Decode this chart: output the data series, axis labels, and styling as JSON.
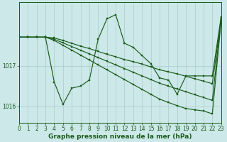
{
  "bg_color": "#cce8e8",
  "line_color": "#1a5c1a",
  "grid_color": "#aacccc",
  "xlabel": "Graphe pression niveau de la mer (hPa)",
  "xlabel_fontsize": 6.5,
  "ylabel_ticks": [
    1016,
    1017
  ],
  "xlim": [
    0,
    23
  ],
  "ylim": [
    1015.6,
    1018.55
  ],
  "series": [
    {
      "x": [
        0,
        1,
        2,
        3,
        4,
        5,
        6,
        7,
        8,
        9,
        10,
        11,
        12,
        13,
        14,
        15,
        16,
        17,
        18,
        19,
        20,
        21,
        22,
        23
      ],
      "y": [
        1017.7,
        1017.7,
        1017.7,
        1017.7,
        1016.6,
        1016.05,
        1016.45,
        1016.5,
        1016.65,
        1017.65,
        1018.15,
        1018.25,
        1017.55,
        1017.45,
        1017.25,
        1017.05,
        1016.7,
        1016.65,
        1016.3,
        1016.75,
        1016.75,
        1016.75,
        1016.75,
        1018.2
      ]
    },
    {
      "x": [
        0,
        1,
        2,
        3,
        4,
        5,
        6,
        7,
        8,
        9,
        10,
        11,
        12,
        13,
        14,
        15,
        16,
        17,
        18,
        19,
        20,
        21,
        22,
        23
      ],
      "y": [
        1017.7,
        1017.7,
        1017.7,
        1017.7,
        1017.68,
        1017.62,
        1017.55,
        1017.48,
        1017.42,
        1017.35,
        1017.28,
        1017.22,
        1017.15,
        1017.1,
        1017.04,
        1016.97,
        1016.9,
        1016.85,
        1016.8,
        1016.74,
        1016.68,
        1016.62,
        1016.56,
        1018.15
      ]
    },
    {
      "x": [
        0,
        1,
        2,
        3,
        4,
        5,
        6,
        7,
        8,
        9,
        10,
        11,
        12,
        13,
        14,
        15,
        16,
        17,
        18,
        19,
        20,
        21,
        22,
        23
      ],
      "y": [
        1017.7,
        1017.7,
        1017.7,
        1017.7,
        1017.65,
        1017.56,
        1017.47,
        1017.38,
        1017.29,
        1017.2,
        1017.11,
        1017.02,
        1016.93,
        1016.84,
        1016.75,
        1016.66,
        1016.57,
        1016.5,
        1016.43,
        1016.36,
        1016.29,
        1016.22,
        1016.15,
        1018.15
      ]
    },
    {
      "x": [
        0,
        1,
        2,
        3,
        4,
        5,
        6,
        7,
        8,
        9,
        10,
        11,
        12,
        13,
        14,
        15,
        16,
        17,
        18,
        19,
        20,
        21,
        22,
        23
      ],
      "y": [
        1017.7,
        1017.7,
        1017.7,
        1017.7,
        1017.62,
        1017.5,
        1017.38,
        1017.26,
        1017.14,
        1017.02,
        1016.9,
        1016.78,
        1016.66,
        1016.54,
        1016.42,
        1016.3,
        1016.18,
        1016.1,
        1016.02,
        1015.95,
        1015.92,
        1015.89,
        1015.82,
        1018.1
      ]
    }
  ],
  "tick_fontsize": 5.5,
  "marker_size": 2.0,
  "linewidth": 0.85
}
